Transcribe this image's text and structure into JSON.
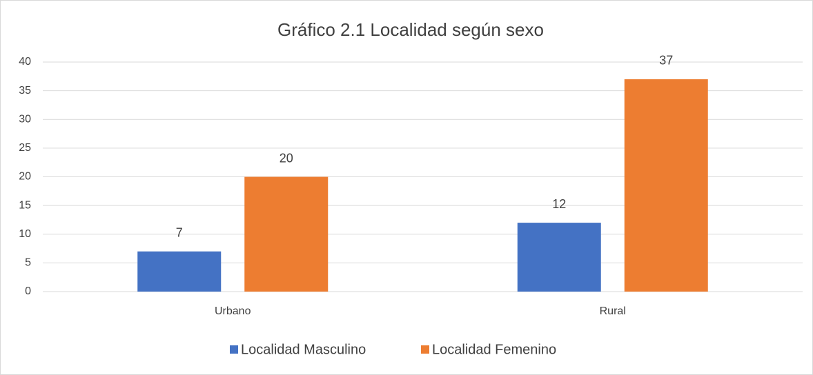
{
  "chart_data": {
    "type": "bar",
    "title": "Gráfico 2.1 Localidad según sexo",
    "categories": [
      "Urbano",
      "Rural"
    ],
    "series": [
      {
        "name": "Localidad Masculino",
        "color": "#4472c4",
        "values": [
          7,
          12
        ]
      },
      {
        "name": "Localidad Femenino",
        "color": "#ed7d31",
        "values": [
          20,
          37
        ]
      }
    ],
    "ylim": [
      0,
      40
    ],
    "yticks": [
      0,
      5,
      10,
      15,
      20,
      25,
      30,
      35,
      40
    ],
    "grid": true,
    "legend": "bottom"
  }
}
